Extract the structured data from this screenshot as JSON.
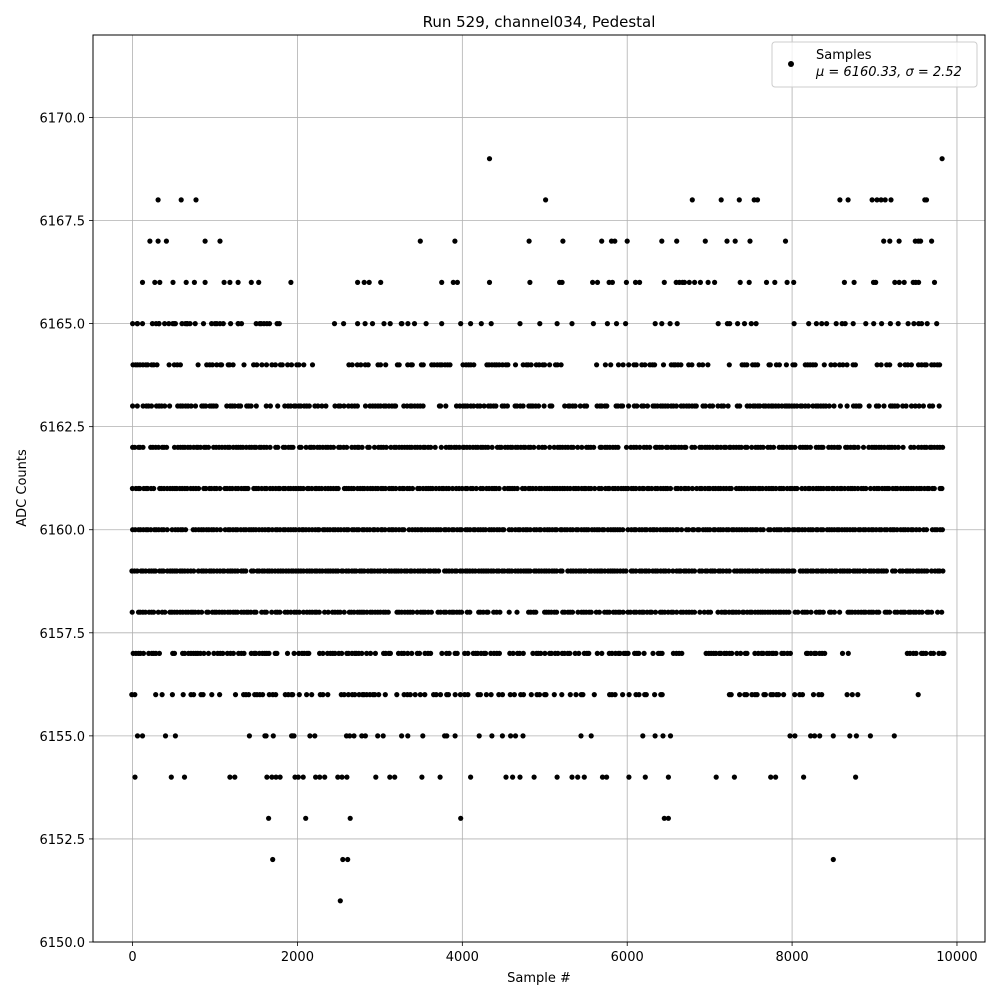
{
  "chart_data": {
    "type": "scatter",
    "title": "Run 529, channel034, Pedestal",
    "xlabel": "Sample #",
    "ylabel": "ADC Counts",
    "xlim": [
      -480,
      10340
    ],
    "ylim": [
      6150.0,
      6172.0
    ],
    "xticks": [
      0,
      2000,
      4000,
      6000,
      8000,
      10000
    ],
    "xtick_labels": [
      "0",
      "2000",
      "4000",
      "6000",
      "8000",
      "10000"
    ],
    "yticks": [
      6150.0,
      6152.5,
      6155.0,
      6157.5,
      6160.0,
      6162.5,
      6165.0,
      6167.5,
      6170.0
    ],
    "ytick_labels": [
      "6150.0",
      "6152.5",
      "6155.0",
      "6157.5",
      "6160.0",
      "6162.5",
      "6165.0",
      "6167.5",
      "6170.0"
    ],
    "grid": true,
    "marker_color": "#000000",
    "legend": {
      "placement": "upper right",
      "entries": [
        {
          "label": "Samples",
          "line2": "μ = 6160.33, σ = 2.52"
        }
      ]
    },
    "series": [
      {
        "name": "Samples",
        "x_range": [
          0,
          9850
        ],
        "level_bands": [
          {
            "y": 6159,
            "x_spans": [
              [
                0,
                9850
              ]
            ],
            "density": 0.95
          },
          {
            "y": 6160,
            "x_spans": [
              [
                0,
                9850
              ]
            ],
            "density": 0.95
          },
          {
            "y": 6161,
            "x_spans": [
              [
                0,
                9850
              ]
            ],
            "density": 0.95
          },
          {
            "y": 6158,
            "x_spans": [
              [
                0,
                9850
              ]
            ],
            "density": 0.85
          },
          {
            "y": 6162,
            "x_spans": [
              [
                0,
                9850
              ]
            ],
            "density": 0.85
          },
          {
            "y": 6163,
            "x_spans": [
              [
                0,
                9850
              ]
            ],
            "density": 0.7
          },
          {
            "y": 6157,
            "x_spans": [
              [
                0,
                6700
              ],
              [
                6950,
                8700
              ],
              [
                9400,
                9850
              ]
            ],
            "density": 0.7
          },
          {
            "y": 6164,
            "x_spans": [
              [
                0,
                2200
              ],
              [
                2600,
                5200
              ],
              [
                5600,
                9850
              ]
            ],
            "density": 0.55
          },
          {
            "y": 6156,
            "x_spans": [
              [
                0,
                6500
              ],
              [
                7200,
                8800
              ],
              [
                9500,
                9550
              ]
            ],
            "density": 0.45
          },
          {
            "y": 6165,
            "x_spans": [
              [
                0,
                1800
              ],
              [
                3100,
                3500
              ],
              [
                6600,
                7600
              ],
              [
                8000,
                9850
              ]
            ],
            "density": 0.3
          },
          {
            "y": 6155,
            "x_spans": [
              [
                900,
                6600
              ],
              [
                7400,
                8500
              ]
            ],
            "density": 0.15
          },
          {
            "y": 6166,
            "x_spans": [
              [
                6600,
                7000
              ],
              [
                8600,
                9800
              ]
            ],
            "density": 0.3
          },
          {
            "y": 6167,
            "x_spans": [
              [
                6700,
                7000
              ],
              [
                8600,
                9800
              ]
            ],
            "density": 0.15
          }
        ],
        "points": [
          {
            "x": 0,
            "y": 6165
          },
          {
            "x": 60,
            "y": 6165
          },
          {
            "x": 120,
            "y": 6165
          },
          {
            "x": 240,
            "y": 6165
          },
          {
            "x": 320,
            "y": 6165
          },
          {
            "x": 440,
            "y": 6165
          },
          {
            "x": 520,
            "y": 6165
          },
          {
            "x": 600,
            "y": 6165
          },
          {
            "x": 660,
            "y": 6165
          },
          {
            "x": 760,
            "y": 6165
          },
          {
            "x": 860,
            "y": 6165
          },
          {
            "x": 1000,
            "y": 6165
          },
          {
            "x": 1100,
            "y": 6165
          },
          {
            "x": 1280,
            "y": 6165
          },
          {
            "x": 1500,
            "y": 6165
          },
          {
            "x": 1560,
            "y": 6165
          },
          {
            "x": 1780,
            "y": 6165
          },
          {
            "x": 2450,
            "y": 6165
          },
          {
            "x": 2560,
            "y": 6165
          },
          {
            "x": 2730,
            "y": 6165
          },
          {
            "x": 2820,
            "y": 6165
          },
          {
            "x": 2910,
            "y": 6165
          },
          {
            "x": 3050,
            "y": 6165
          },
          {
            "x": 3260,
            "y": 6165
          },
          {
            "x": 3340,
            "y": 6165
          },
          {
            "x": 3420,
            "y": 6165
          },
          {
            "x": 3560,
            "y": 6165
          },
          {
            "x": 3750,
            "y": 6165
          },
          {
            "x": 3980,
            "y": 6165
          },
          {
            "x": 4100,
            "y": 6165
          },
          {
            "x": 4230,
            "y": 6165
          },
          {
            "x": 4350,
            "y": 6165
          },
          {
            "x": 4700,
            "y": 6165
          },
          {
            "x": 4940,
            "y": 6165
          },
          {
            "x": 5150,
            "y": 6165
          },
          {
            "x": 5330,
            "y": 6165
          },
          {
            "x": 5590,
            "y": 6165
          },
          {
            "x": 5760,
            "y": 6165
          },
          {
            "x": 5870,
            "y": 6165
          },
          {
            "x": 5980,
            "y": 6165
          },
          {
            "x": 6340,
            "y": 6165
          },
          {
            "x": 6420,
            "y": 6165
          },
          {
            "x": 6520,
            "y": 6165
          },
          {
            "x": 120,
            "y": 6166
          },
          {
            "x": 270,
            "y": 6166
          },
          {
            "x": 330,
            "y": 6166
          },
          {
            "x": 490,
            "y": 6166
          },
          {
            "x": 650,
            "y": 6166
          },
          {
            "x": 750,
            "y": 6166
          },
          {
            "x": 880,
            "y": 6166
          },
          {
            "x": 1110,
            "y": 6166
          },
          {
            "x": 1180,
            "y": 6166
          },
          {
            "x": 1280,
            "y": 6166
          },
          {
            "x": 1440,
            "y": 6166
          },
          {
            "x": 1530,
            "y": 6166
          },
          {
            "x": 1920,
            "y": 6166
          },
          {
            "x": 2730,
            "y": 6166
          },
          {
            "x": 2810,
            "y": 6166
          },
          {
            "x": 2870,
            "y": 6166
          },
          {
            "x": 3010,
            "y": 6166
          },
          {
            "x": 3750,
            "y": 6166
          },
          {
            "x": 3890,
            "y": 6166
          },
          {
            "x": 3940,
            "y": 6166
          },
          {
            "x": 4330,
            "y": 6166
          },
          {
            "x": 4820,
            "y": 6166
          },
          {
            "x": 5180,
            "y": 6166
          },
          {
            "x": 5210,
            "y": 6166
          },
          {
            "x": 5580,
            "y": 6166
          },
          {
            "x": 5640,
            "y": 6166
          },
          {
            "x": 5780,
            "y": 6166
          },
          {
            "x": 5820,
            "y": 6166
          },
          {
            "x": 5990,
            "y": 6166
          },
          {
            "x": 6100,
            "y": 6166
          },
          {
            "x": 6150,
            "y": 6166
          },
          {
            "x": 6450,
            "y": 6166
          },
          {
            "x": 7060,
            "y": 6166
          },
          {
            "x": 7370,
            "y": 6166
          },
          {
            "x": 7480,
            "y": 6166
          },
          {
            "x": 7690,
            "y": 6166
          },
          {
            "x": 7790,
            "y": 6166
          },
          {
            "x": 7940,
            "y": 6166
          },
          {
            "x": 8020,
            "y": 6166
          },
          {
            "x": 210,
            "y": 6167
          },
          {
            "x": 310,
            "y": 6167
          },
          {
            "x": 410,
            "y": 6167
          },
          {
            "x": 880,
            "y": 6167
          },
          {
            "x": 1060,
            "y": 6167
          },
          {
            "x": 3490,
            "y": 6167
          },
          {
            "x": 3910,
            "y": 6167
          },
          {
            "x": 4810,
            "y": 6167
          },
          {
            "x": 5220,
            "y": 6167
          },
          {
            "x": 5690,
            "y": 6167
          },
          {
            "x": 5810,
            "y": 6167
          },
          {
            "x": 5850,
            "y": 6167
          },
          {
            "x": 6000,
            "y": 6167
          },
          {
            "x": 6420,
            "y": 6167
          },
          {
            "x": 6600,
            "y": 6167
          },
          {
            "x": 7210,
            "y": 6167
          },
          {
            "x": 7310,
            "y": 6167
          },
          {
            "x": 7490,
            "y": 6167
          },
          {
            "x": 7920,
            "y": 6167
          },
          {
            "x": 310,
            "y": 6168
          },
          {
            "x": 590,
            "y": 6168
          },
          {
            "x": 770,
            "y": 6168
          },
          {
            "x": 5010,
            "y": 6168
          },
          {
            "x": 6790,
            "y": 6168
          },
          {
            "x": 7140,
            "y": 6168
          },
          {
            "x": 7360,
            "y": 6168
          },
          {
            "x": 7540,
            "y": 6168
          },
          {
            "x": 7580,
            "y": 6168
          },
          {
            "x": 8580,
            "y": 6168
          },
          {
            "x": 8680,
            "y": 6168
          },
          {
            "x": 8970,
            "y": 6168
          },
          {
            "x": 9030,
            "y": 6168
          },
          {
            "x": 9080,
            "y": 6168
          },
          {
            "x": 9130,
            "y": 6168
          },
          {
            "x": 9200,
            "y": 6168
          },
          {
            "x": 9610,
            "y": 6168
          },
          {
            "x": 9630,
            "y": 6168
          },
          {
            "x": 4330,
            "y": 6169
          },
          {
            "x": 9820,
            "y": 6169
          },
          {
            "x": 30,
            "y": 6154
          },
          {
            "x": 470,
            "y": 6154
          },
          {
            "x": 630,
            "y": 6154
          },
          {
            "x": 1180,
            "y": 6154
          },
          {
            "x": 1240,
            "y": 6154
          },
          {
            "x": 1630,
            "y": 6154
          },
          {
            "x": 1690,
            "y": 6154
          },
          {
            "x": 1740,
            "y": 6154
          },
          {
            "x": 1790,
            "y": 6154
          },
          {
            "x": 1970,
            "y": 6154
          },
          {
            "x": 2010,
            "y": 6154
          },
          {
            "x": 2070,
            "y": 6154
          },
          {
            "x": 2220,
            "y": 6154
          },
          {
            "x": 2270,
            "y": 6154
          },
          {
            "x": 2330,
            "y": 6154
          },
          {
            "x": 2490,
            "y": 6154
          },
          {
            "x": 2540,
            "y": 6154
          },
          {
            "x": 2600,
            "y": 6154
          },
          {
            "x": 2950,
            "y": 6154
          },
          {
            "x": 3120,
            "y": 6154
          },
          {
            "x": 3180,
            "y": 6154
          },
          {
            "x": 3510,
            "y": 6154
          },
          {
            "x": 3730,
            "y": 6154
          },
          {
            "x": 4100,
            "y": 6154
          },
          {
            "x": 4530,
            "y": 6154
          },
          {
            "x": 4610,
            "y": 6154
          },
          {
            "x": 4700,
            "y": 6154
          },
          {
            "x": 4870,
            "y": 6154
          },
          {
            "x": 5150,
            "y": 6154
          },
          {
            "x": 5330,
            "y": 6154
          },
          {
            "x": 5400,
            "y": 6154
          },
          {
            "x": 5480,
            "y": 6154
          },
          {
            "x": 5700,
            "y": 6154
          },
          {
            "x": 5750,
            "y": 6154
          },
          {
            "x": 6020,
            "y": 6154
          },
          {
            "x": 6220,
            "y": 6154
          },
          {
            "x": 6500,
            "y": 6154
          },
          {
            "x": 7080,
            "y": 6154
          },
          {
            "x": 7300,
            "y": 6154
          },
          {
            "x": 7740,
            "y": 6154
          },
          {
            "x": 7800,
            "y": 6154
          },
          {
            "x": 8140,
            "y": 6154
          },
          {
            "x": 8770,
            "y": 6154
          },
          {
            "x": 60,
            "y": 6155
          },
          {
            "x": 120,
            "y": 6155
          },
          {
            "x": 400,
            "y": 6155
          },
          {
            "x": 520,
            "y": 6155
          },
          {
            "x": 1620,
            "y": 6155
          },
          {
            "x": 1940,
            "y": 6155
          },
          {
            "x": 8500,
            "y": 6155
          },
          {
            "x": 8700,
            "y": 6155
          },
          {
            "x": 8780,
            "y": 6155
          },
          {
            "x": 8950,
            "y": 6155
          },
          {
            "x": 9240,
            "y": 6155
          },
          {
            "x": 1650,
            "y": 6153
          },
          {
            "x": 2100,
            "y": 6153
          },
          {
            "x": 2640,
            "y": 6153
          },
          {
            "x": 3980,
            "y": 6153
          },
          {
            "x": 6450,
            "y": 6153
          },
          {
            "x": 6500,
            "y": 6153
          },
          {
            "x": 1700,
            "y": 6152
          },
          {
            "x": 2550,
            "y": 6152
          },
          {
            "x": 2610,
            "y": 6152
          },
          {
            "x": 8500,
            "y": 6152
          },
          {
            "x": 2520,
            "y": 6151
          }
        ]
      }
    ]
  }
}
